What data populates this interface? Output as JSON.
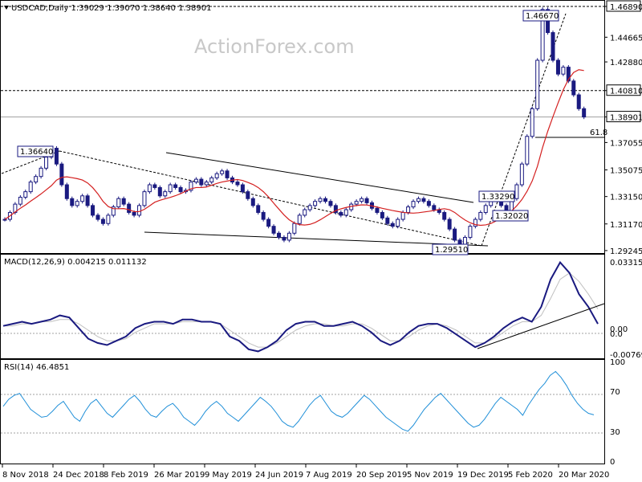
{
  "header": {
    "symbol_text": "USDCAD,Daily  1.39029 1.39070 1.38640 1.38901",
    "watermark": "ActionForex.com"
  },
  "colors": {
    "candle_up": "#1a1a80",
    "candle_down": "#1a1a80",
    "ma": "#d42020",
    "macd_main": "#1a1a80",
    "macd_signal": "#c0c0c0",
    "rsi_line": "#1f8fd8",
    "level_line": "#000000",
    "grid": "#a0a0a0"
  },
  "chart_data": [
    {
      "type": "candlestick",
      "panel": "price",
      "title": "USDCAD,Daily  1.39029 1.39070 1.38640 1.38901",
      "ylim": [
        1.2924,
        1.4689
      ],
      "y_ticks": [
        "1.46890",
        "1.44665",
        "1.42880",
        "1.40810",
        "1.38901",
        "1.37055",
        "1.35075",
        "1.33150",
        "1.31170",
        "1.29245"
      ],
      "annotations": [
        {
          "label": "1.46670",
          "value": 1.4667
        },
        {
          "label": "1.36640",
          "value": 1.3664
        },
        {
          "label": "1.33290",
          "value": 1.3329
        },
        {
          "label": "1.32020",
          "value": 1.3202
        },
        {
          "label": "1.29510",
          "value": 1.2951
        },
        {
          "label": "61.8",
          "value": 1.3775
        }
      ],
      "levels": [
        1.4689,
        1.4081,
        1.38901
      ],
      "close_series": [
        1.315,
        1.32,
        1.326,
        1.331,
        1.335,
        1.342,
        1.346,
        1.352,
        1.36,
        1.3664,
        1.355,
        1.34,
        1.33,
        1.325,
        1.328,
        1.332,
        1.325,
        1.318,
        1.315,
        1.312,
        1.318,
        1.324,
        1.33,
        1.326,
        1.32,
        1.318,
        1.325,
        1.335,
        1.34,
        1.338,
        1.332,
        1.335,
        1.34,
        1.338,
        1.335,
        1.336,
        1.342,
        1.344,
        1.34,
        1.342,
        1.345,
        1.348,
        1.35,
        1.345,
        1.342,
        1.34,
        1.335,
        1.33,
        1.325,
        1.32,
        1.315,
        1.31,
        1.305,
        1.302,
        1.3,
        1.305,
        1.312,
        1.318,
        1.322,
        1.325,
        1.328,
        1.33,
        1.328,
        1.325,
        1.32,
        1.318,
        1.322,
        1.326,
        1.328,
        1.33,
        1.327,
        1.323,
        1.32,
        1.316,
        1.312,
        1.31,
        1.315,
        1.32,
        1.324,
        1.328,
        1.33,
        1.328,
        1.325,
        1.322,
        1.32,
        1.315,
        1.308,
        1.3,
        1.2951,
        1.302,
        1.31,
        1.315,
        1.32,
        1.325,
        1.33,
        1.3329,
        1.325,
        1.3202,
        1.33,
        1.34,
        1.355,
        1.375,
        1.395,
        1.43,
        1.4667,
        1.45,
        1.43,
        1.42,
        1.425,
        1.415,
        1.405,
        1.395,
        1.38901
      ]
    },
    {
      "type": "line",
      "panel": "macd",
      "title": "MACD(12,26,9) 0.004215 0.011132",
      "y_ticks": [
        "0.033155",
        "0.00",
        "0.0",
        "-0.00769"
      ],
      "ylim": [
        -0.0115,
        0.0355
      ],
      "series": [
        {
          "name": "MACD(12,26,9)",
          "last": 0.004215,
          "values": [
            0.003,
            0.004,
            0.005,
            0.004,
            0.005,
            0.006,
            0.008,
            0.007,
            0.002,
            -0.003,
            -0.005,
            -0.006,
            -0.004,
            -0.002,
            0.002,
            0.004,
            0.005,
            0.005,
            0.004,
            0.006,
            0.006,
            0.005,
            0.005,
            0.004,
            -0.002,
            -0.004,
            -0.008,
            -0.009,
            -0.007,
            -0.004,
            0.001,
            0.004,
            0.005,
            0.005,
            0.003,
            0.003,
            0.004,
            0.005,
            0.003,
            0.0,
            -0.004,
            -0.006,
            -0.004,
            0.0,
            0.003,
            0.004,
            0.004,
            0.002,
            -0.001,
            -0.004,
            -0.007,
            -0.005,
            -0.002,
            0.002,
            0.005,
            0.007,
            0.005,
            0.012,
            0.025,
            0.033,
            0.028,
            0.018,
            0.012,
            0.004
          ]
        },
        {
          "name": "Signal",
          "last": 0.011132,
          "values": [
            0.003,
            0.003,
            0.004,
            0.004,
            0.005,
            0.005,
            0.006,
            0.006,
            0.004,
            0.001,
            -0.002,
            -0.004,
            -0.004,
            -0.003,
            0.0,
            0.002,
            0.004,
            0.004,
            0.004,
            0.005,
            0.005,
            0.005,
            0.005,
            0.004,
            0.001,
            -0.002,
            -0.005,
            -0.007,
            -0.007,
            -0.005,
            -0.002,
            0.001,
            0.003,
            0.004,
            0.004,
            0.003,
            0.003,
            0.004,
            0.004,
            0.002,
            -0.001,
            -0.004,
            -0.004,
            -0.002,
            0.001,
            0.003,
            0.004,
            0.003,
            0.001,
            -0.002,
            -0.005,
            -0.005,
            -0.003,
            0.0,
            0.003,
            0.005,
            0.005,
            0.008,
            0.016,
            0.025,
            0.028,
            0.024,
            0.018,
            0.011
          ]
        }
      ]
    },
    {
      "type": "line",
      "panel": "rsi",
      "title": "RSI(14) 46.4851",
      "ylim": [
        0,
        100
      ],
      "y_ticks": [
        "100",
        "70",
        "30",
        "0"
      ],
      "series": [
        {
          "name": "RSI(14)",
          "last": 46.4851,
          "values": [
            55,
            62,
            66,
            68,
            60,
            52,
            48,
            44,
            45,
            50,
            56,
            60,
            52,
            44,
            40,
            50,
            58,
            62,
            55,
            48,
            44,
            50,
            56,
            62,
            66,
            60,
            52,
            46,
            44,
            50,
            55,
            58,
            52,
            44,
            40,
            36,
            42,
            50,
            56,
            60,
            55,
            48,
            44,
            40,
            46,
            52,
            58,
            64,
            60,
            55,
            48,
            40,
            36,
            34,
            40,
            48,
            56,
            62,
            66,
            58,
            50,
            46,
            44,
            48,
            54,
            60,
            66,
            62,
            56,
            50,
            44,
            40,
            36,
            32,
            30,
            36,
            44,
            52,
            58,
            64,
            68,
            62,
            56,
            50,
            44,
            38,
            34,
            36,
            42,
            50,
            58,
            64,
            60,
            56,
            52,
            46,
            56,
            64,
            72,
            78,
            86,
            90,
            84,
            76,
            66,
            58,
            52,
            48,
            46.4851
          ]
        }
      ]
    }
  ],
  "x_axis": {
    "labels": [
      "8 Nov 2018",
      "24 Dec 2018",
      "8 Feb 2019",
      "26 Mar 2019",
      "9 May 2019",
      "24 Jun 2019",
      "7 Aug 2019",
      "20 Sep 2019",
      "5 Nov 2019",
      "19 Dec 2019",
      "5 Feb 2020",
      "20 Mar 2020"
    ]
  },
  "panels": {
    "macd_title": "MACD(12,26,9) 0.004215 0.011132",
    "rsi_title": "RSI(14) 46.4851"
  }
}
